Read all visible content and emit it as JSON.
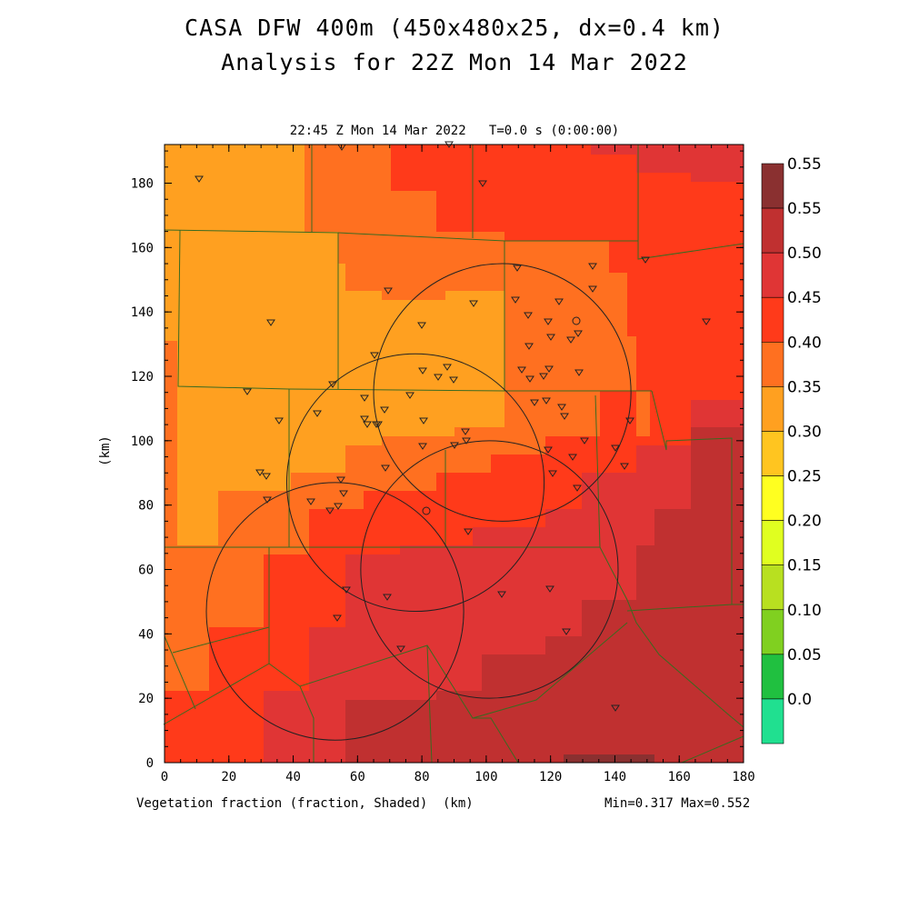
{
  "title_line1": "CASA DFW 400m (450x480x25, dx=0.4 km)",
  "title_line2": "Analysis for 22Z Mon 14 Mar 2022",
  "valid_time": "22:45 Z Mon 14 Mar 2022   T=0.0 s (0:00:00)",
  "field_label": "Vegetation fraction (fraction, Shaded)",
  "x_unit": "(km)",
  "y_unit": "(km)",
  "min_max": "Min=0.317 Max=0.552",
  "map": {
    "x_range": [
      0,
      180
    ],
    "y_range": [
      0,
      192
    ],
    "x_ticks": [
      0,
      20,
      40,
      60,
      80,
      100,
      120,
      140,
      160,
      180
    ],
    "y_ticks": [
      0,
      20,
      40,
      60,
      80,
      100,
      120,
      140,
      160,
      180
    ],
    "radar_ranges": [
      {
        "x": 78,
        "y": 87,
        "r": 40
      },
      {
        "x": 101,
        "y": 60,
        "r": 40
      },
      {
        "x": 105,
        "y": 115,
        "r": 40
      },
      {
        "x": 53,
        "y": 47,
        "r": 40
      }
    ]
  },
  "colorbar": {
    "labels": [
      "0.55",
      "0.55",
      "0.50",
      "0.45",
      "0.40",
      "0.35",
      "0.30",
      "0.25",
      "0.20",
      "0.15",
      "0.10",
      "0.05",
      "0.0"
    ],
    "colors": [
      "#8a3030",
      "#c03030",
      "#e03535",
      "#ff3a1a",
      "#ff7020",
      "#ffa020",
      "#ffc520",
      "#ffff20",
      "#e0ff20",
      "#b8e020",
      "#80d020",
      "#20c040",
      "#20e090"
    ]
  }
}
